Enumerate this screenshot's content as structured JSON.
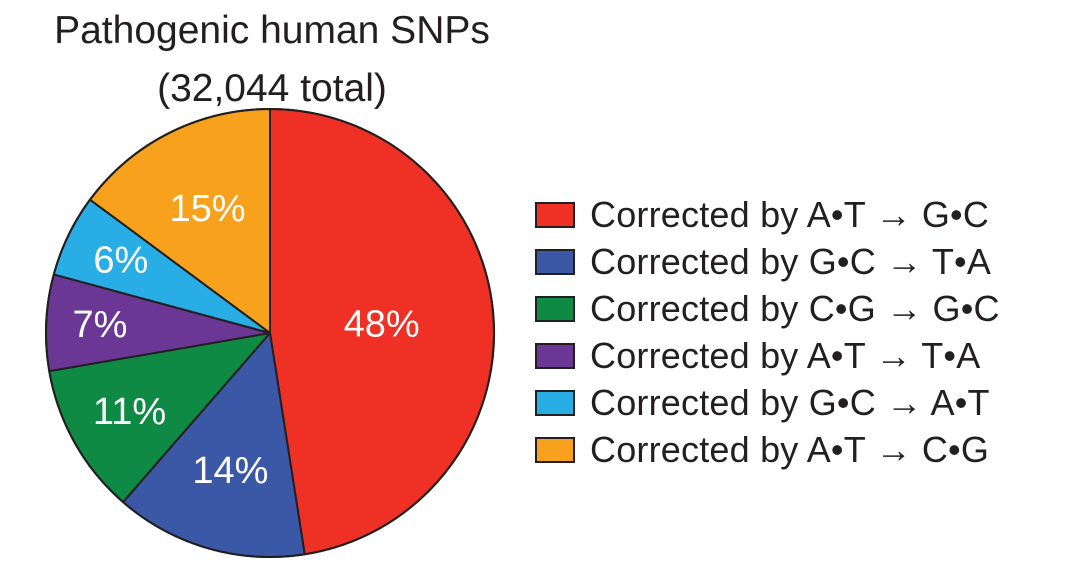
{
  "chart_data": {
    "type": "pie",
    "title": "Pathogenic human SNPs",
    "subtitle": "(32,044 total)",
    "legend_position": "right",
    "slices": [
      {
        "label": "Corrected by A•T → G•C",
        "value": 48,
        "value_label": "48%",
        "color": "#ee3124"
      },
      {
        "label": "Corrected by G•C → T•A",
        "value": 14,
        "value_label": "14%",
        "color": "#3b58a6"
      },
      {
        "label": "Corrected by C•G → G•C",
        "value": 11,
        "value_label": "11%",
        "color": "#0f8a45"
      },
      {
        "label": "Corrected by A•T → T•A",
        "value": 7,
        "value_label": "7%",
        "color": "#6b3795"
      },
      {
        "label": "Corrected by G•C → A•T",
        "value": 6,
        "value_label": "6%",
        "color": "#28aee4"
      },
      {
        "label": "Corrected by A•T → C•G",
        "value": 15,
        "value_label": "15%",
        "color": "#f8a11c"
      }
    ]
  }
}
